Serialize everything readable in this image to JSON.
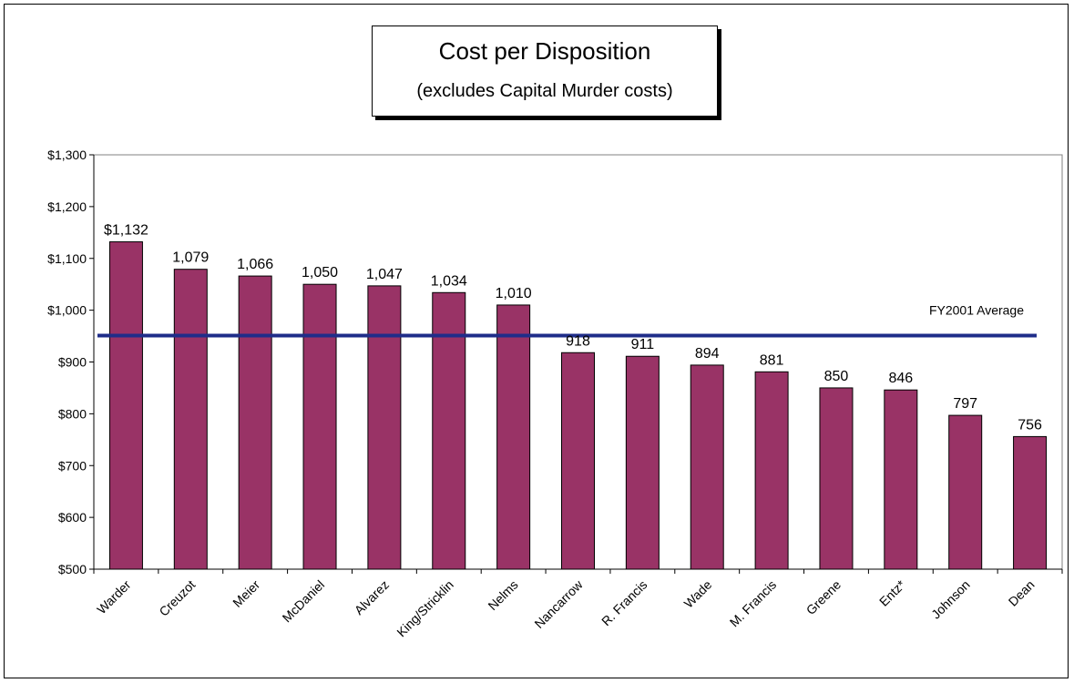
{
  "chart_data": {
    "type": "bar",
    "title": "Cost per Disposition",
    "subtitle": "(excludes Capital Murder costs)",
    "categories": [
      "Warder",
      "Creuzot",
      "Meier",
      "McDaniel",
      "Alvarez",
      "King/Stricklin",
      "Nelms",
      "Nancarrow",
      "R. Francis",
      "Wade",
      "M. Francis",
      "Greene",
      "Entz*",
      "Johnson",
      "Dean"
    ],
    "values": [
      1132,
      1079,
      1066,
      1050,
      1047,
      1034,
      1010,
      918,
      911,
      894,
      881,
      850,
      846,
      797,
      756
    ],
    "data_labels": [
      "$1,132",
      "1,079",
      "1,066",
      "1,050",
      "1,047",
      "1,034",
      "1,010",
      "918",
      "911",
      "894",
      "881",
      "850",
      "846",
      "797",
      "756"
    ],
    "y_ticks": [
      500,
      600,
      700,
      800,
      900,
      1000,
      1100,
      1200,
      1300
    ],
    "y_tick_labels": [
      "$500",
      "$600",
      "$700",
      "$800",
      "$900",
      "$1,000",
      "$1,100",
      "$1,200",
      "$1,300"
    ],
    "ylim": [
      500,
      1300
    ],
    "xlabel": "",
    "ylabel": "",
    "grid": false,
    "reference_line": {
      "label": "FY2001 Average",
      "value": 951
    },
    "colors": {
      "bar": "#993366",
      "reference_line": "#1f2d8a",
      "background": "#ffffff"
    }
  }
}
